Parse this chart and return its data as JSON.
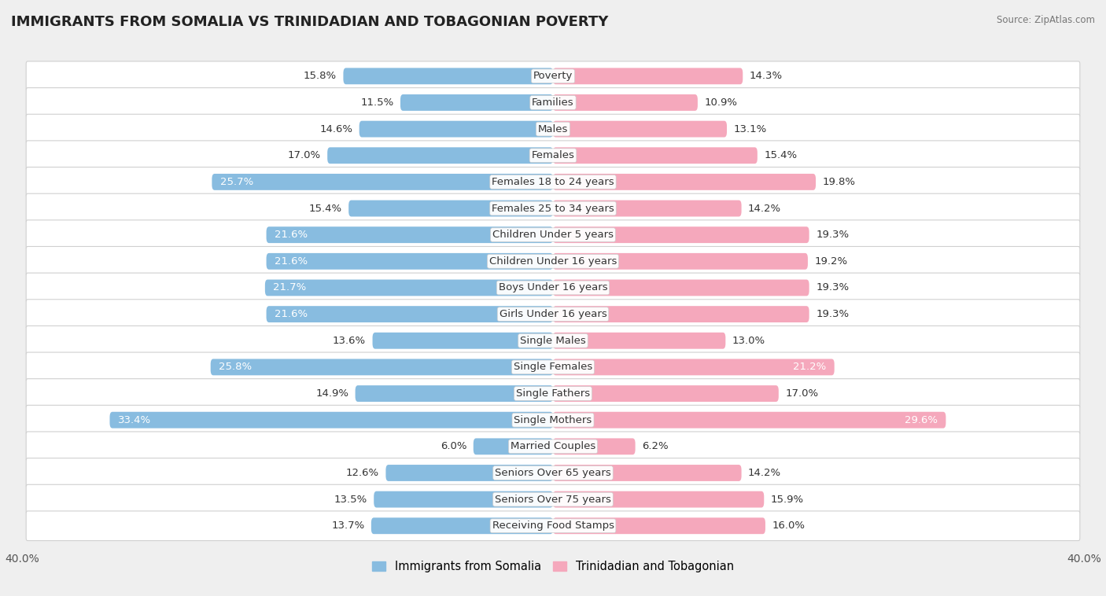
{
  "title": "IMMIGRANTS FROM SOMALIA VS TRINIDADIAN AND TOBAGONIAN POVERTY",
  "source": "Source: ZipAtlas.com",
  "categories": [
    "Poverty",
    "Families",
    "Males",
    "Females",
    "Females 18 to 24 years",
    "Females 25 to 34 years",
    "Children Under 5 years",
    "Children Under 16 years",
    "Boys Under 16 years",
    "Girls Under 16 years",
    "Single Males",
    "Single Females",
    "Single Fathers",
    "Single Mothers",
    "Married Couples",
    "Seniors Over 65 years",
    "Seniors Over 75 years",
    "Receiving Food Stamps"
  ],
  "somalia_values": [
    15.8,
    11.5,
    14.6,
    17.0,
    25.7,
    15.4,
    21.6,
    21.6,
    21.7,
    21.6,
    13.6,
    25.8,
    14.9,
    33.4,
    6.0,
    12.6,
    13.5,
    13.7
  ],
  "tt_values": [
    14.3,
    10.9,
    13.1,
    15.4,
    19.8,
    14.2,
    19.3,
    19.2,
    19.3,
    19.3,
    13.0,
    21.2,
    17.0,
    29.6,
    6.2,
    14.2,
    15.9,
    16.0
  ],
  "somalia_color": "#88bce0",
  "tt_color": "#f5a8bc",
  "background_color": "#efefef",
  "bar_bg_color": "#ffffff",
  "axis_limit": 40.0,
  "label_fontsize": 9.5,
  "title_fontsize": 13,
  "legend_label_somalia": "Immigrants from Somalia",
  "legend_label_tt": "Trinidadian and Tobagonian"
}
